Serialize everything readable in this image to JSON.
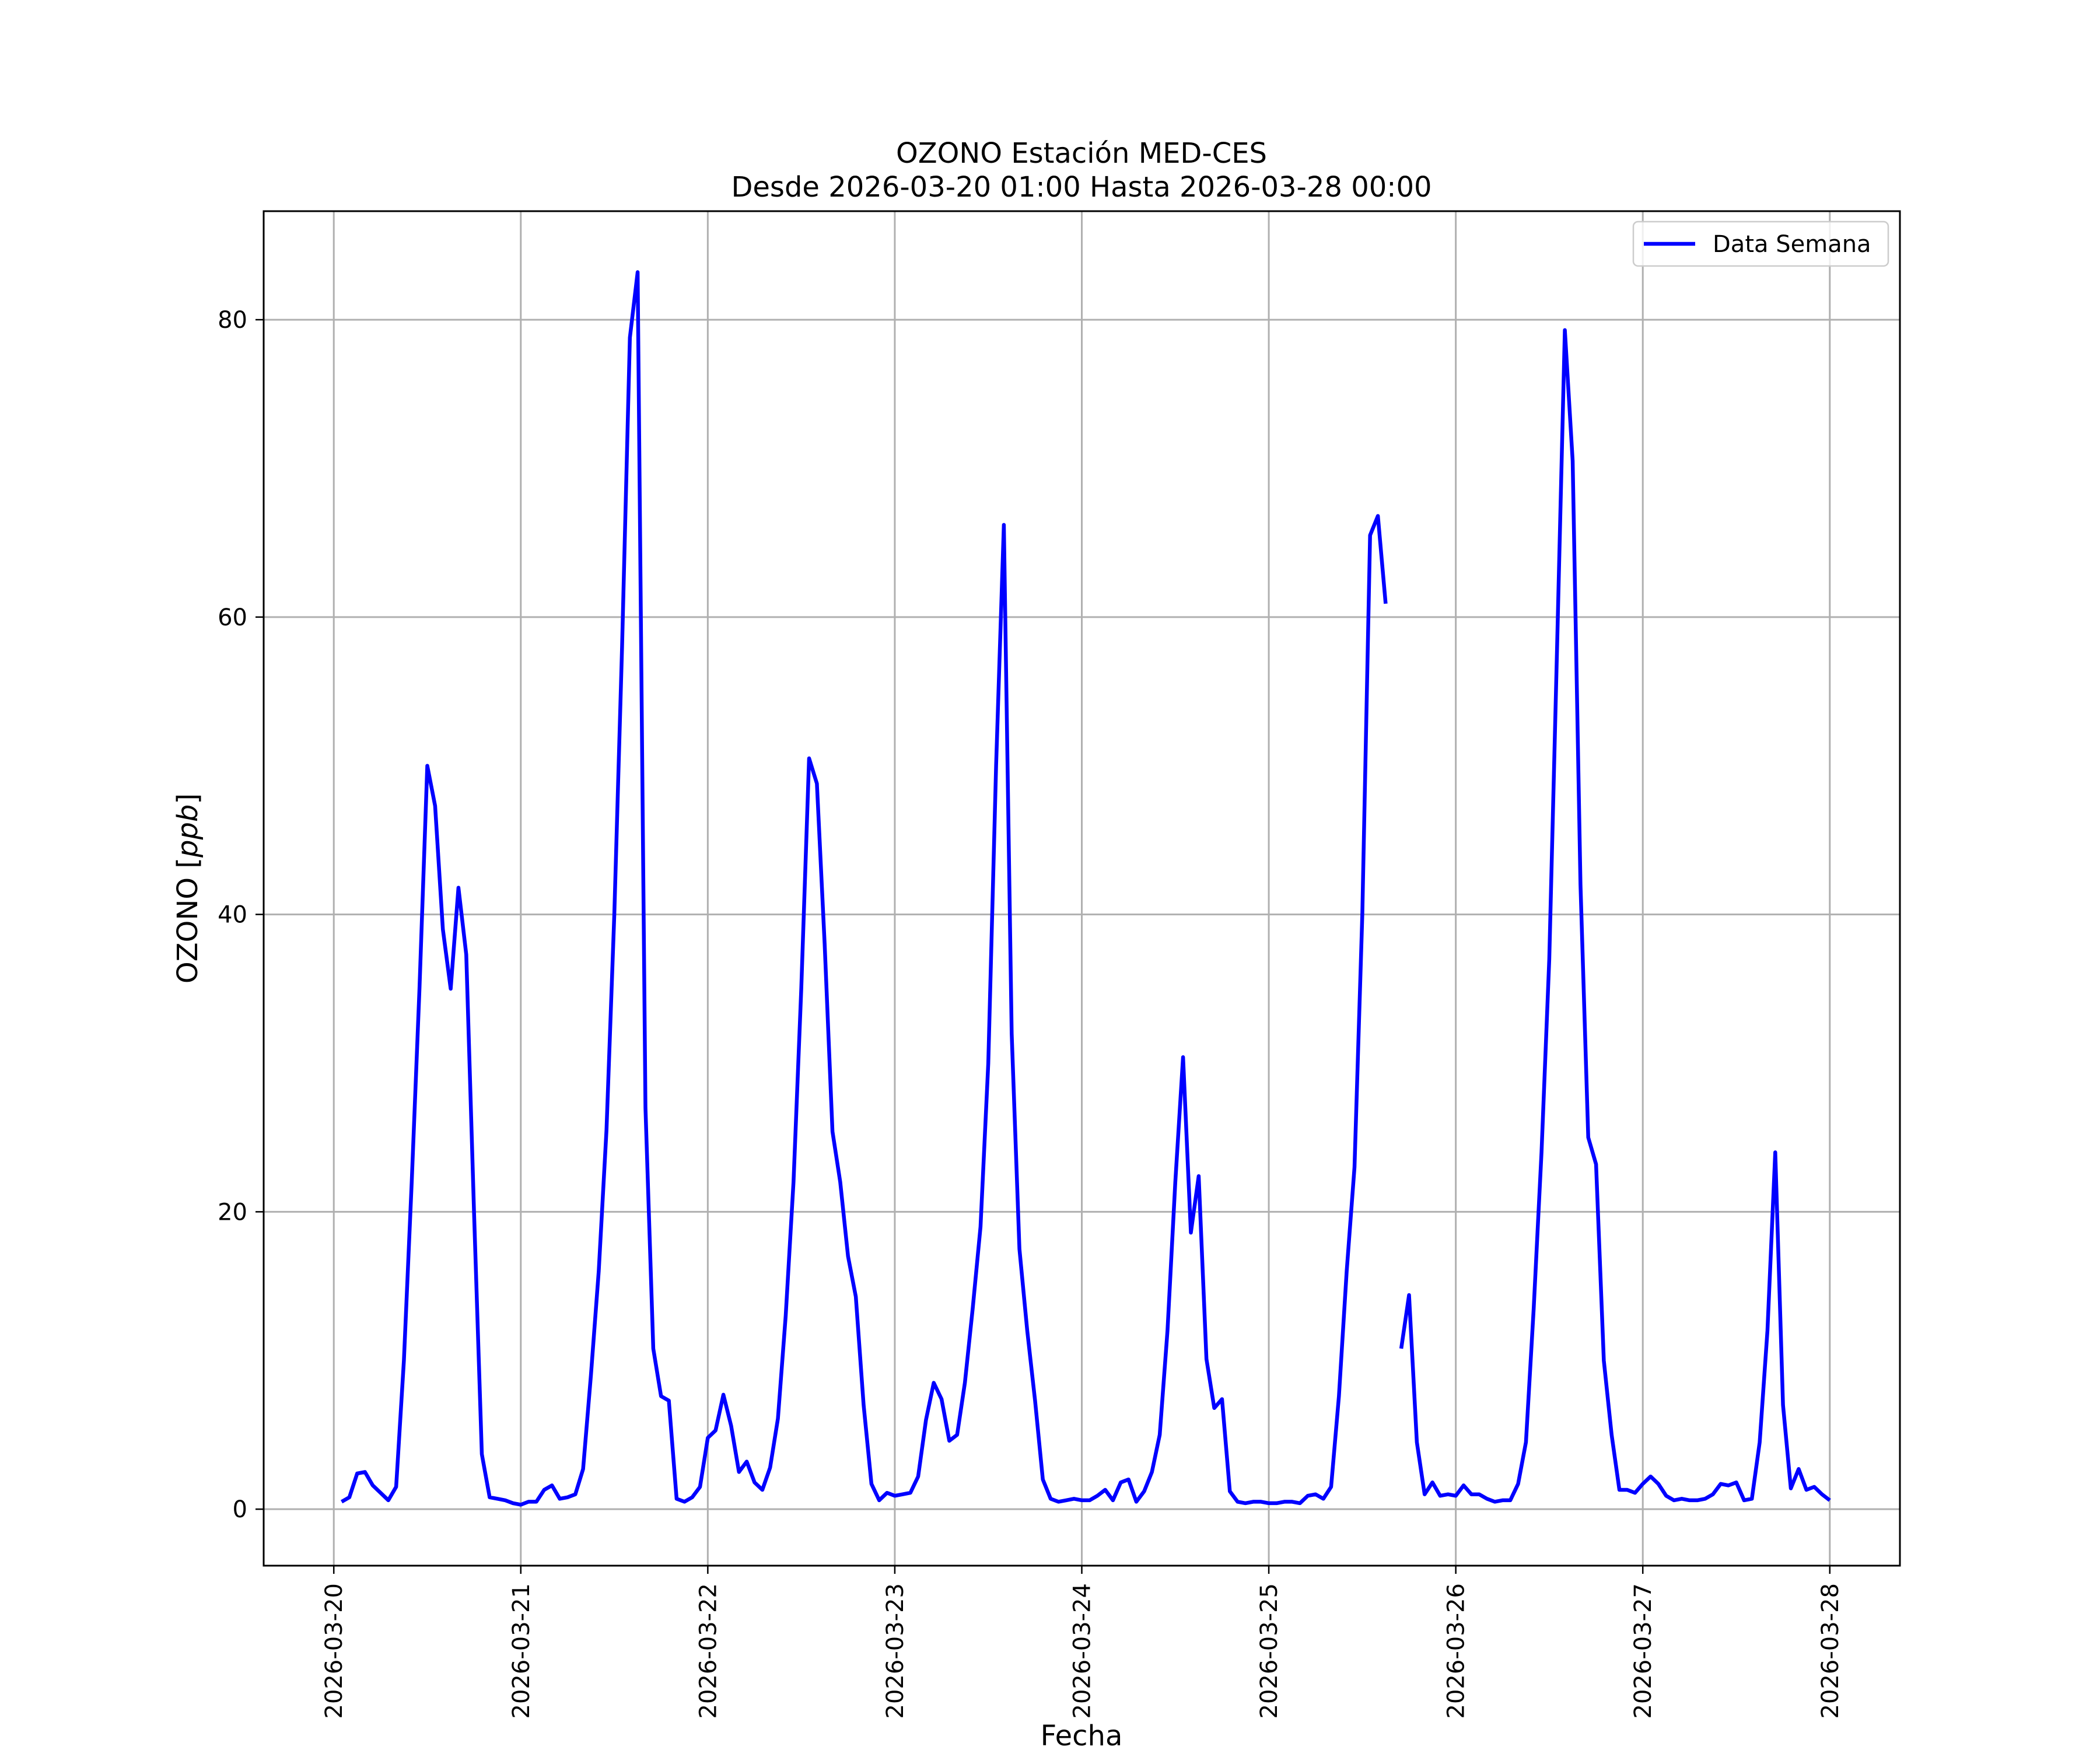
{
  "chart_data": {
    "type": "line",
    "title": "OZONO Estación MED-CES",
    "subtitle": "Desde 2026-03-20 01:00 Hasta 2026-03-28 00:00",
    "xlabel": "Fecha",
    "ylabel": "OZONO [ppb]",
    "ylabel_prefix": "OZONO [",
    "ylabel_unit": "ppb",
    "ylabel_suffix": "]",
    "xlim": [
      "2026-03-19 15:00",
      "2026-03-28 09:00"
    ],
    "ylim": [
      -3.8,
      87.3
    ],
    "x_ticks": [
      "2026-03-20",
      "2026-03-21",
      "2026-03-22",
      "2026-03-23",
      "2026-03-24",
      "2026-03-25",
      "2026-03-26",
      "2026-03-27",
      "2026-03-28"
    ],
    "y_ticks": [
      0,
      20,
      40,
      60,
      80
    ],
    "grid": true,
    "legend_position": "top-right",
    "series": [
      {
        "name": "Data Semana",
        "color": "#0000ff",
        "x_start": "2026-03-20 01:00",
        "x_step_hours": 1,
        "values": [
          0.5,
          0.8,
          2.4,
          2.5,
          1.6,
          1.1,
          0.6,
          1.5,
          10,
          22,
          35,
          50,
          47.3,
          39,
          35,
          41.8,
          37.3,
          20,
          3.7,
          0.8,
          0.7,
          0.6,
          0.4,
          0.3,
          0.5,
          0.5,
          1.3,
          1.6,
          0.7,
          0.8,
          1.0,
          2.7,
          9,
          16,
          25.5,
          40,
          58,
          78.8,
          83.2,
          27,
          10.8,
          7.6,
          7.3,
          0.7,
          0.5,
          0.8,
          1.5,
          4.8,
          5.3,
          7.7,
          5.6,
          2.5,
          3.2,
          1.8,
          1.3,
          2.8,
          6.1,
          13,
          22,
          35,
          50.5,
          48.8,
          38,
          25.4,
          22,
          17,
          14.3,
          7,
          1.7,
          0.6,
          1.1,
          0.9,
          1.0,
          1.1,
          2.2,
          6,
          8.5,
          7.4,
          4.6,
          5,
          8.5,
          13.5,
          19,
          30,
          50,
          66.2,
          32,
          17.5,
          12,
          7.3,
          2,
          0.7,
          0.5,
          0.6,
          0.7,
          0.6,
          0.6,
          0.9,
          1.3,
          0.6,
          1.8,
          2.0,
          0.5,
          1.2,
          2.5,
          5.0,
          12,
          22,
          30.4,
          18.6,
          22.4,
          10.1,
          6.8,
          7.4,
          1.2,
          0.5,
          0.4,
          0.5,
          0.5,
          0.4,
          0.4,
          0.5,
          0.5,
          0.4,
          0.9,
          1.0,
          0.7,
          1.5,
          7.6,
          16,
          23,
          40,
          65.5,
          66.8,
          60.9,
          null,
          10.8,
          14.4,
          4.5,
          1.0,
          1.8,
          0.9,
          1.0,
          0.9,
          1.6,
          1.0,
          1.0,
          0.7,
          0.5,
          0.6,
          0.6,
          1.7,
          4.5,
          13.5,
          24,
          37,
          58,
          79.3,
          70.5,
          42,
          25,
          23.2,
          10,
          5,
          1.3,
          1.3,
          1.1,
          1.7,
          2.2,
          1.7,
          0.9,
          0.6,
          0.7,
          0.6,
          0.6,
          0.7,
          1.0,
          1.7,
          1.6,
          1.8,
          0.6,
          0.7,
          4.5,
          12,
          24,
          7,
          1.4,
          2.7,
          1.3,
          1.5,
          1.0,
          0.6
        ]
      }
    ]
  }
}
